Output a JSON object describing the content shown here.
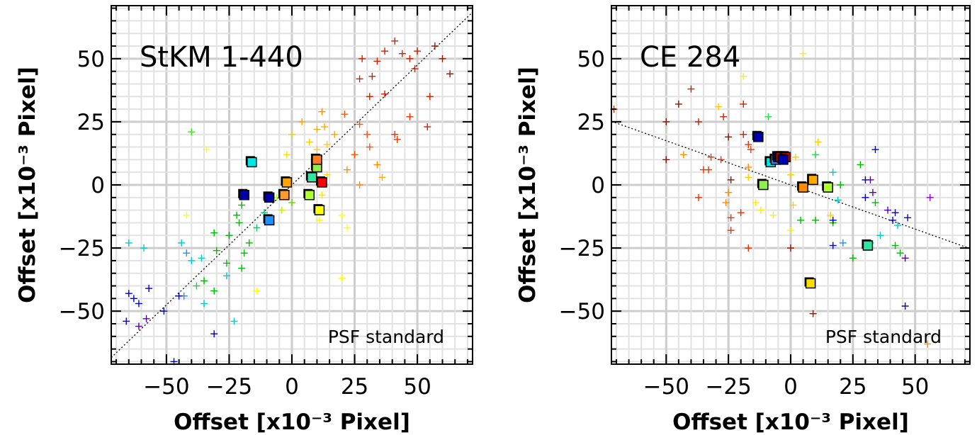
{
  "chart_data": [
    {
      "type": "scatter",
      "title": "StKM 1-440",
      "annotation": "PSF standard",
      "xlabel": "Offset [x10⁻³ Pixel]",
      "ylabel": "Offset [x10⁻³ Pixel]",
      "xlim": [
        -72,
        72
      ],
      "ylim": [
        -71,
        71
      ],
      "xticks": [
        -50,
        -25,
        0,
        25,
        50
      ],
      "yticks": [
        -50,
        -25,
        0,
        25,
        50
      ],
      "xtick_labels": [
        "−50",
        "−25",
        "0",
        "25",
        "50"
      ],
      "ytick_labels": [
        "−50",
        "−25",
        "0",
        "25",
        "50"
      ],
      "grid": true,
      "fit_line": {
        "slope": 0.95,
        "intercept": 0
      },
      "squares": [
        {
          "x": -16,
          "y": 9,
          "color": "#00e6e6"
        },
        {
          "x": -19,
          "y": -4,
          "color": "#0000aa"
        },
        {
          "x": -9,
          "y": -5,
          "color": "#0000aa"
        },
        {
          "x": -9,
          "y": -14,
          "color": "#1e90ff"
        },
        {
          "x": -2,
          "y": 1,
          "color": "#ffa500"
        },
        {
          "x": -3,
          "y": -4,
          "color": "#ff9a2e"
        },
        {
          "x": 8,
          "y": 3,
          "color": "#2ee6a0"
        },
        {
          "x": 10,
          "y": 7,
          "color": "#90ee50"
        },
        {
          "x": 10,
          "y": 10,
          "color": "#ff7f27"
        },
        {
          "x": 12,
          "y": 1,
          "color": "#ff0000"
        },
        {
          "x": 7,
          "y": -4,
          "color": "#adff2f"
        },
        {
          "x": 11,
          "y": -10,
          "color": "#ffff00"
        }
      ],
      "crosses": [
        {
          "x": 41,
          "y": 57,
          "color": "#cc2200"
        },
        {
          "x": 37,
          "y": 53,
          "color": "#cc2200"
        },
        {
          "x": 28,
          "y": 50,
          "color": "#cc2200"
        },
        {
          "x": 34,
          "y": 49,
          "color": "#cc2200"
        },
        {
          "x": 44,
          "y": 52,
          "color": "#cc2200"
        },
        {
          "x": 50,
          "y": 53,
          "color": "#cc2200"
        },
        {
          "x": 47,
          "y": 50,
          "color": "#cc2200"
        },
        {
          "x": 49,
          "y": 46,
          "color": "#cc2200"
        },
        {
          "x": 57,
          "y": 55,
          "color": "#8b1a00"
        },
        {
          "x": 60,
          "y": 50,
          "color": "#8b1a00"
        },
        {
          "x": 63,
          "y": 44,
          "color": "#8b1a00"
        },
        {
          "x": 32,
          "y": 43,
          "color": "#cc2200"
        },
        {
          "x": 31,
          "y": 35,
          "color": "#cc2200"
        },
        {
          "x": 37,
          "y": 36,
          "color": "#cc2200"
        },
        {
          "x": 27,
          "y": 42,
          "color": "#cc2200"
        },
        {
          "x": 55,
          "y": 35,
          "color": "#cc2200"
        },
        {
          "x": 54,
          "y": 23,
          "color": "#cc2200"
        },
        {
          "x": 47,
          "y": 27,
          "color": "#ee3300"
        },
        {
          "x": 41,
          "y": 20,
          "color": "#ee3300"
        },
        {
          "x": 42,
          "y": 18,
          "color": "#ee3300"
        },
        {
          "x": 21,
          "y": 28,
          "color": "#ff5500"
        },
        {
          "x": 27,
          "y": 24,
          "color": "#ff5500"
        },
        {
          "x": 30,
          "y": 20,
          "color": "#ff5500"
        },
        {
          "x": 31,
          "y": 15,
          "color": "#ff5500"
        },
        {
          "x": 25,
          "y": 12,
          "color": "#ff5500"
        },
        {
          "x": 34,
          "y": 8,
          "color": "#ff8c00"
        },
        {
          "x": 22,
          "y": 6,
          "color": "#ff8c00"
        },
        {
          "x": 27,
          "y": 0,
          "color": "#ff8c00"
        },
        {
          "x": 36,
          "y": 3,
          "color": "#ffaa00"
        },
        {
          "x": 12,
          "y": 29,
          "color": "#ff8c00"
        },
        {
          "x": 13,
          "y": 23,
          "color": "#ffaa00"
        },
        {
          "x": 17,
          "y": 20,
          "color": "#ffaa00"
        },
        {
          "x": 10,
          "y": 22,
          "color": "#ffaa00"
        },
        {
          "x": 4,
          "y": 25,
          "color": "#ffaa00"
        },
        {
          "x": 0,
          "y": 20,
          "color": "#ffcc00"
        },
        {
          "x": 7,
          "y": 17,
          "color": "#ffcc00"
        },
        {
          "x": 14,
          "y": 16,
          "color": "#ffcc00"
        },
        {
          "x": -2,
          "y": 12,
          "color": "#ffdd00"
        },
        {
          "x": 10,
          "y": 14,
          "color": "#ffcc00"
        },
        {
          "x": 14,
          "y": 4,
          "color": "#ffdd00"
        },
        {
          "x": 12,
          "y": -4,
          "color": "#ffdd00"
        },
        {
          "x": 20,
          "y": -12,
          "color": "#ffff00"
        },
        {
          "x": 22,
          "y": -17,
          "color": "#ffff00"
        },
        {
          "x": 20,
          "y": -37,
          "color": "#ffff00"
        },
        {
          "x": 11,
          "y": -14,
          "color": "#ffff00"
        },
        {
          "x": -34,
          "y": 14,
          "color": "#ffff00"
        },
        {
          "x": -42,
          "y": -12,
          "color": "#ffff00"
        },
        {
          "x": -14,
          "y": -42,
          "color": "#ffff00"
        },
        {
          "x": -4,
          "y": -10,
          "color": "#ccee00"
        },
        {
          "x": -6,
          "y": -5,
          "color": "#adff2f"
        },
        {
          "x": 0,
          "y": -7,
          "color": "#66dd00"
        },
        {
          "x": -40,
          "y": 21,
          "color": "#44dd22"
        },
        {
          "x": -22,
          "y": -12,
          "color": "#00bb00"
        },
        {
          "x": -20,
          "y": -8,
          "color": "#00bb00"
        },
        {
          "x": -21,
          "y": -15,
          "color": "#00bb00"
        },
        {
          "x": -17,
          "y": -23,
          "color": "#00bb00"
        },
        {
          "x": -25,
          "y": -20,
          "color": "#00bb00"
        },
        {
          "x": -31,
          "y": -19,
          "color": "#00bb00"
        },
        {
          "x": -30,
          "y": -26,
          "color": "#00bb00"
        },
        {
          "x": -26,
          "y": -31,
          "color": "#00bb00"
        },
        {
          "x": -20,
          "y": -33,
          "color": "#00bb00"
        },
        {
          "x": -19,
          "y": -27,
          "color": "#00bb00"
        },
        {
          "x": -35,
          "y": -38,
          "color": "#00bb00"
        },
        {
          "x": -31,
          "y": -42,
          "color": "#00bb00"
        },
        {
          "x": -38,
          "y": -40,
          "color": "#22cc44"
        },
        {
          "x": -14,
          "y": -17,
          "color": "#00cc66"
        },
        {
          "x": -11,
          "y": -11,
          "color": "#00cc66"
        },
        {
          "x": -26,
          "y": -36,
          "color": "#00cccc"
        },
        {
          "x": -36,
          "y": -29,
          "color": "#00cccc"
        },
        {
          "x": -40,
          "y": -30,
          "color": "#00cccc"
        },
        {
          "x": -44,
          "y": -23,
          "color": "#00cccc"
        },
        {
          "x": -35,
          "y": -47,
          "color": "#00cccc"
        },
        {
          "x": -23,
          "y": -54,
          "color": "#00cccc"
        },
        {
          "x": -65,
          "y": -23,
          "color": "#00cccc"
        },
        {
          "x": -59,
          "y": -25,
          "color": "#00cccc"
        },
        {
          "x": -43,
          "y": -44,
          "color": "#1e90ff"
        },
        {
          "x": -42,
          "y": -27,
          "color": "#1e90ff"
        },
        {
          "x": -65,
          "y": -43,
          "color": "#0000cc"
        },
        {
          "x": -63,
          "y": -45,
          "color": "#0000cc"
        },
        {
          "x": -61,
          "y": -47,
          "color": "#0000cc"
        },
        {
          "x": -57,
          "y": -41,
          "color": "#0000cc"
        },
        {
          "x": -51,
          "y": -50,
          "color": "#0000cc"
        },
        {
          "x": -58,
          "y": -53,
          "color": "#5500aa"
        },
        {
          "x": -61,
          "y": -56,
          "color": "#5500aa"
        },
        {
          "x": -66,
          "y": -54,
          "color": "#0000cc"
        },
        {
          "x": -45,
          "y": -44,
          "color": "#0000cc"
        },
        {
          "x": -31,
          "y": -59,
          "color": "#0000aa"
        },
        {
          "x": -47,
          "y": -70,
          "color": "#0000aa"
        }
      ]
    },
    {
      "type": "scatter",
      "title": "CE 284",
      "annotation": "PSF standard",
      "xlabel": "Offset [x10⁻³ Pixel]",
      "ylabel": "Offset [x10⁻³ Pixel]",
      "xlim": [
        -72,
        72
      ],
      "ylim": [
        -71,
        71
      ],
      "xticks": [
        -50,
        -25,
        0,
        25,
        50
      ],
      "yticks": [
        -50,
        -25,
        0,
        25,
        50
      ],
      "xtick_labels": [
        "−50",
        "−25",
        "0",
        "25",
        "50"
      ],
      "ytick_labels": [
        "−50",
        "−25",
        "0",
        "25",
        "50"
      ],
      "grid": true,
      "fit_line": {
        "slope": -0.35,
        "intercept": 0
      },
      "squares": [
        {
          "x": -13,
          "y": 19,
          "color": "#0000aa"
        },
        {
          "x": -8,
          "y": 9,
          "color": "#00e6e6"
        },
        {
          "x": -6,
          "y": 10,
          "color": "#1e90ff"
        },
        {
          "x": -5,
          "y": 11,
          "color": "#0000cc"
        },
        {
          "x": -4,
          "y": 11,
          "color": "#ff0000"
        },
        {
          "x": -2,
          "y": 11,
          "color": "#cc0000"
        },
        {
          "x": -3,
          "y": 10,
          "color": "#0000aa"
        },
        {
          "x": -11,
          "y": 0,
          "color": "#90ee50"
        },
        {
          "x": 5,
          "y": -1,
          "color": "#ff8c00"
        },
        {
          "x": 9,
          "y": 2,
          "color": "#ffaa00"
        },
        {
          "x": 15,
          "y": -1,
          "color": "#adff2f"
        },
        {
          "x": 31,
          "y": -24,
          "color": "#2ee6a0"
        },
        {
          "x": 8,
          "y": -39,
          "color": "#ffdd00"
        }
      ],
      "crosses": [
        {
          "x": -71,
          "y": 30,
          "color": "#cc2200"
        },
        {
          "x": -40,
          "y": 38,
          "color": "#cc2200"
        },
        {
          "x": -45,
          "y": 32,
          "color": "#8b1a00"
        },
        {
          "x": -19,
          "y": 32,
          "color": "#cc2200"
        },
        {
          "x": -14,
          "y": 20,
          "color": "#8b1a00"
        },
        {
          "x": -27,
          "y": 27,
          "color": "#cc2200"
        },
        {
          "x": -50,
          "y": 25,
          "color": "#8b1a00"
        },
        {
          "x": -37,
          "y": 25,
          "color": "#cc2200"
        },
        {
          "x": -19,
          "y": 20,
          "color": "#cc2200"
        },
        {
          "x": -25,
          "y": 19,
          "color": "#8b1a00"
        },
        {
          "x": -50,
          "y": 10,
          "color": "#8b1a00"
        },
        {
          "x": -32,
          "y": 11,
          "color": "#ee3300"
        },
        {
          "x": -28,
          "y": 10,
          "color": "#ee3300"
        },
        {
          "x": -17,
          "y": 16,
          "color": "#ee3300"
        },
        {
          "x": -16,
          "y": 14,
          "color": "#ee3300"
        },
        {
          "x": -35,
          "y": 6,
          "color": "#ee3300"
        },
        {
          "x": -33,
          "y": 6,
          "color": "#ee3300"
        },
        {
          "x": -24,
          "y": 2,
          "color": "#8b1a00"
        },
        {
          "x": -37,
          "y": -5,
          "color": "#ee3300"
        },
        {
          "x": -20,
          "y": -11,
          "color": "#ee3300"
        },
        {
          "x": -24,
          "y": -13,
          "color": "#ee3300"
        },
        {
          "x": -24,
          "y": -18,
          "color": "#ee3300"
        },
        {
          "x": -17,
          "y": -25,
          "color": "#ee3300"
        },
        {
          "x": 0,
          "y": -25,
          "color": "#8b1a00"
        },
        {
          "x": 9,
          "y": -51,
          "color": "#8b1a00"
        },
        {
          "x": -43,
          "y": 12,
          "color": "#ff8c00"
        },
        {
          "x": -25,
          "y": -3,
          "color": "#ff8c00"
        },
        {
          "x": -26,
          "y": -7,
          "color": "#ff8c00"
        },
        {
          "x": -17,
          "y": 7,
          "color": "#ff8c00"
        },
        {
          "x": -19,
          "y": 43,
          "color": "#ffee00"
        },
        {
          "x": 5,
          "y": 52,
          "color": "#ffee00"
        },
        {
          "x": -29,
          "y": 31,
          "color": "#ffcc00"
        },
        {
          "x": -17,
          "y": 3,
          "color": "#ffcc00"
        },
        {
          "x": -14,
          "y": -7,
          "color": "#ffee00"
        },
        {
          "x": -12,
          "y": -10,
          "color": "#ffee00"
        },
        {
          "x": -7,
          "y": -12,
          "color": "#ffee00"
        },
        {
          "x": 0,
          "y": -18,
          "color": "#ffee00"
        },
        {
          "x": 1,
          "y": -8,
          "color": "#ffcc00"
        },
        {
          "x": 0,
          "y": 4,
          "color": "#ffcc00"
        },
        {
          "x": 2,
          "y": 11,
          "color": "#ffcc00"
        },
        {
          "x": 11,
          "y": 17,
          "color": "#ffcc00"
        },
        {
          "x": 16,
          "y": -12,
          "color": "#ffcc00"
        },
        {
          "x": 55,
          "y": -63,
          "color": "#ff8c00"
        },
        {
          "x": -9,
          "y": 27,
          "color": "#22dd44"
        },
        {
          "x": 10,
          "y": 12,
          "color": "#22dd44"
        },
        {
          "x": 4,
          "y": -14,
          "color": "#00bb00"
        },
        {
          "x": 10,
          "y": -14,
          "color": "#00bb00"
        },
        {
          "x": 17,
          "y": -15,
          "color": "#00bb00"
        },
        {
          "x": 20,
          "y": 0,
          "color": "#00bb00"
        },
        {
          "x": 28,
          "y": 8,
          "color": "#00bb00"
        },
        {
          "x": 25,
          "y": -29,
          "color": "#00bb00"
        },
        {
          "x": 42,
          "y": -24,
          "color": "#00bb00"
        },
        {
          "x": 44,
          "y": -27,
          "color": "#00bb00"
        },
        {
          "x": 34,
          "y": -7,
          "color": "#00bb00"
        },
        {
          "x": 17,
          "y": 5,
          "color": "#00cccc"
        },
        {
          "x": 19,
          "y": -6,
          "color": "#00cccc"
        },
        {
          "x": 36,
          "y": -20,
          "color": "#00cccc"
        },
        {
          "x": 32,
          "y": -23,
          "color": "#00cccc"
        },
        {
          "x": 43,
          "y": -16,
          "color": "#00cccc"
        },
        {
          "x": 21,
          "y": -23,
          "color": "#1e90ff"
        },
        {
          "x": 17,
          "y": -24,
          "color": "#0000cc"
        },
        {
          "x": 30,
          "y": 2,
          "color": "#0000cc"
        },
        {
          "x": 32,
          "y": 2,
          "color": "#5500aa"
        },
        {
          "x": 34,
          "y": 14,
          "color": "#0000cc"
        },
        {
          "x": 30,
          "y": -5,
          "color": "#0000cc"
        },
        {
          "x": 17,
          "y": -14,
          "color": "#0000cc"
        },
        {
          "x": 41,
          "y": -14,
          "color": "#0000cc"
        },
        {
          "x": 42,
          "y": -11,
          "color": "#0000cc"
        },
        {
          "x": 47,
          "y": -13,
          "color": "#0000cc"
        },
        {
          "x": 39,
          "y": -10,
          "color": "#5500aa"
        },
        {
          "x": 33,
          "y": -3,
          "color": "#5500aa"
        },
        {
          "x": 46,
          "y": -29,
          "color": "#5500aa"
        },
        {
          "x": 46,
          "y": -48,
          "color": "#0000aa"
        },
        {
          "x": 56,
          "y": -5,
          "color": "#9900cc"
        }
      ]
    }
  ]
}
